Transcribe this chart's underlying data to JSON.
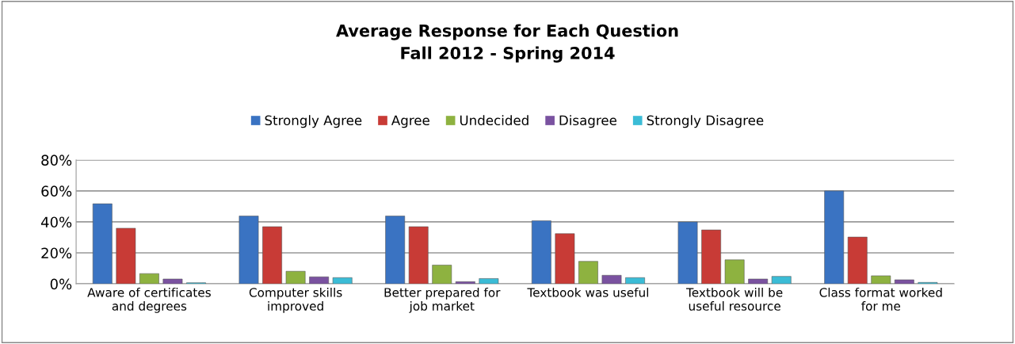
{
  "chart_data": {
    "type": "bar",
    "title": "Average Response for Each Question\nFall 2012 - Spring 2014",
    "categories": [
      "Aware of certificates\nand degrees",
      "Computer skills\nimproved",
      "Better prepared for\njob market",
      "Textbook was useful",
      "Textbook will be\nuseful resource",
      "Class format worked\nfor me"
    ],
    "series": [
      {
        "name": "Strongly Agree",
        "color": "#3a73c2",
        "values": [
          51.7,
          43.8,
          43.8,
          40.7,
          40.0,
          60.0
        ]
      },
      {
        "name": "Agree",
        "color": "#c83b36",
        "values": [
          35.9,
          36.9,
          36.9,
          32.4,
          34.8,
          30.2
        ]
      },
      {
        "name": "Undecided",
        "color": "#8eb240",
        "values": [
          6.6,
          8.1,
          12.1,
          14.5,
          15.5,
          5.2
        ]
      },
      {
        "name": "Disagree",
        "color": "#7a52a0",
        "values": [
          3.1,
          4.5,
          1.4,
          5.5,
          3.1,
          2.6
        ]
      },
      {
        "name": "Strongly Disagree",
        "color": "#3bbcd6",
        "values": [
          0.7,
          4.0,
          3.4,
          4.0,
          4.8,
          0.9
        ]
      }
    ],
    "ylim": [
      0,
      80
    ],
    "yticks": [
      {
        "value": 0,
        "label": "0%"
      },
      {
        "value": 20,
        "label": "20%"
      },
      {
        "value": 40,
        "label": "40%"
      },
      {
        "value": 60,
        "label": "60%"
      },
      {
        "value": 80,
        "label": "80%"
      }
    ],
    "grid": "y",
    "legend": "top"
  }
}
